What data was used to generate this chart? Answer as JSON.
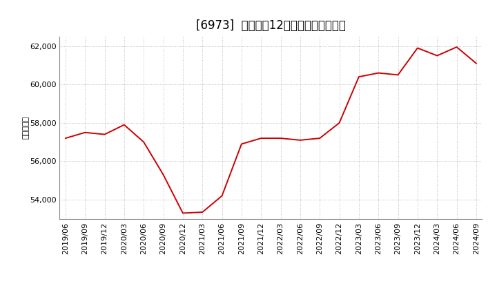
{
  "title": "[6973]  売上高の12か月移動合計の推移",
  "ylabel": "（百万円）",
  "line_color": "#cc0000",
  "background_color": "#ffffff",
  "grid_color": "#b0b0b0",
  "dates": [
    "2019/06",
    "2019/09",
    "2019/12",
    "2020/03",
    "2020/06",
    "2020/09",
    "2020/12",
    "2021/03",
    "2021/06",
    "2021/09",
    "2021/12",
    "2022/03",
    "2022/06",
    "2022/09",
    "2022/12",
    "2023/03",
    "2023/06",
    "2023/09",
    "2023/12",
    "2024/03",
    "2024/06",
    "2024/09"
  ],
  "values": [
    57200,
    57500,
    57400,
    57900,
    57000,
    55300,
    53300,
    53350,
    54200,
    56900,
    57200,
    57200,
    57100,
    57200,
    58000,
    60400,
    60600,
    60500,
    61900,
    61500,
    61950,
    61100
  ],
  "ylim": [
    53000,
    62500
  ],
  "yticks": [
    54000,
    56000,
    58000,
    60000,
    62000
  ],
  "ytick_labels": [
    "54,000",
    "56,000",
    "58,000",
    "60,000",
    "62,000"
  ],
  "title_fontsize": 12,
  "axis_fontsize": 8,
  "ylabel_fontsize": 8
}
